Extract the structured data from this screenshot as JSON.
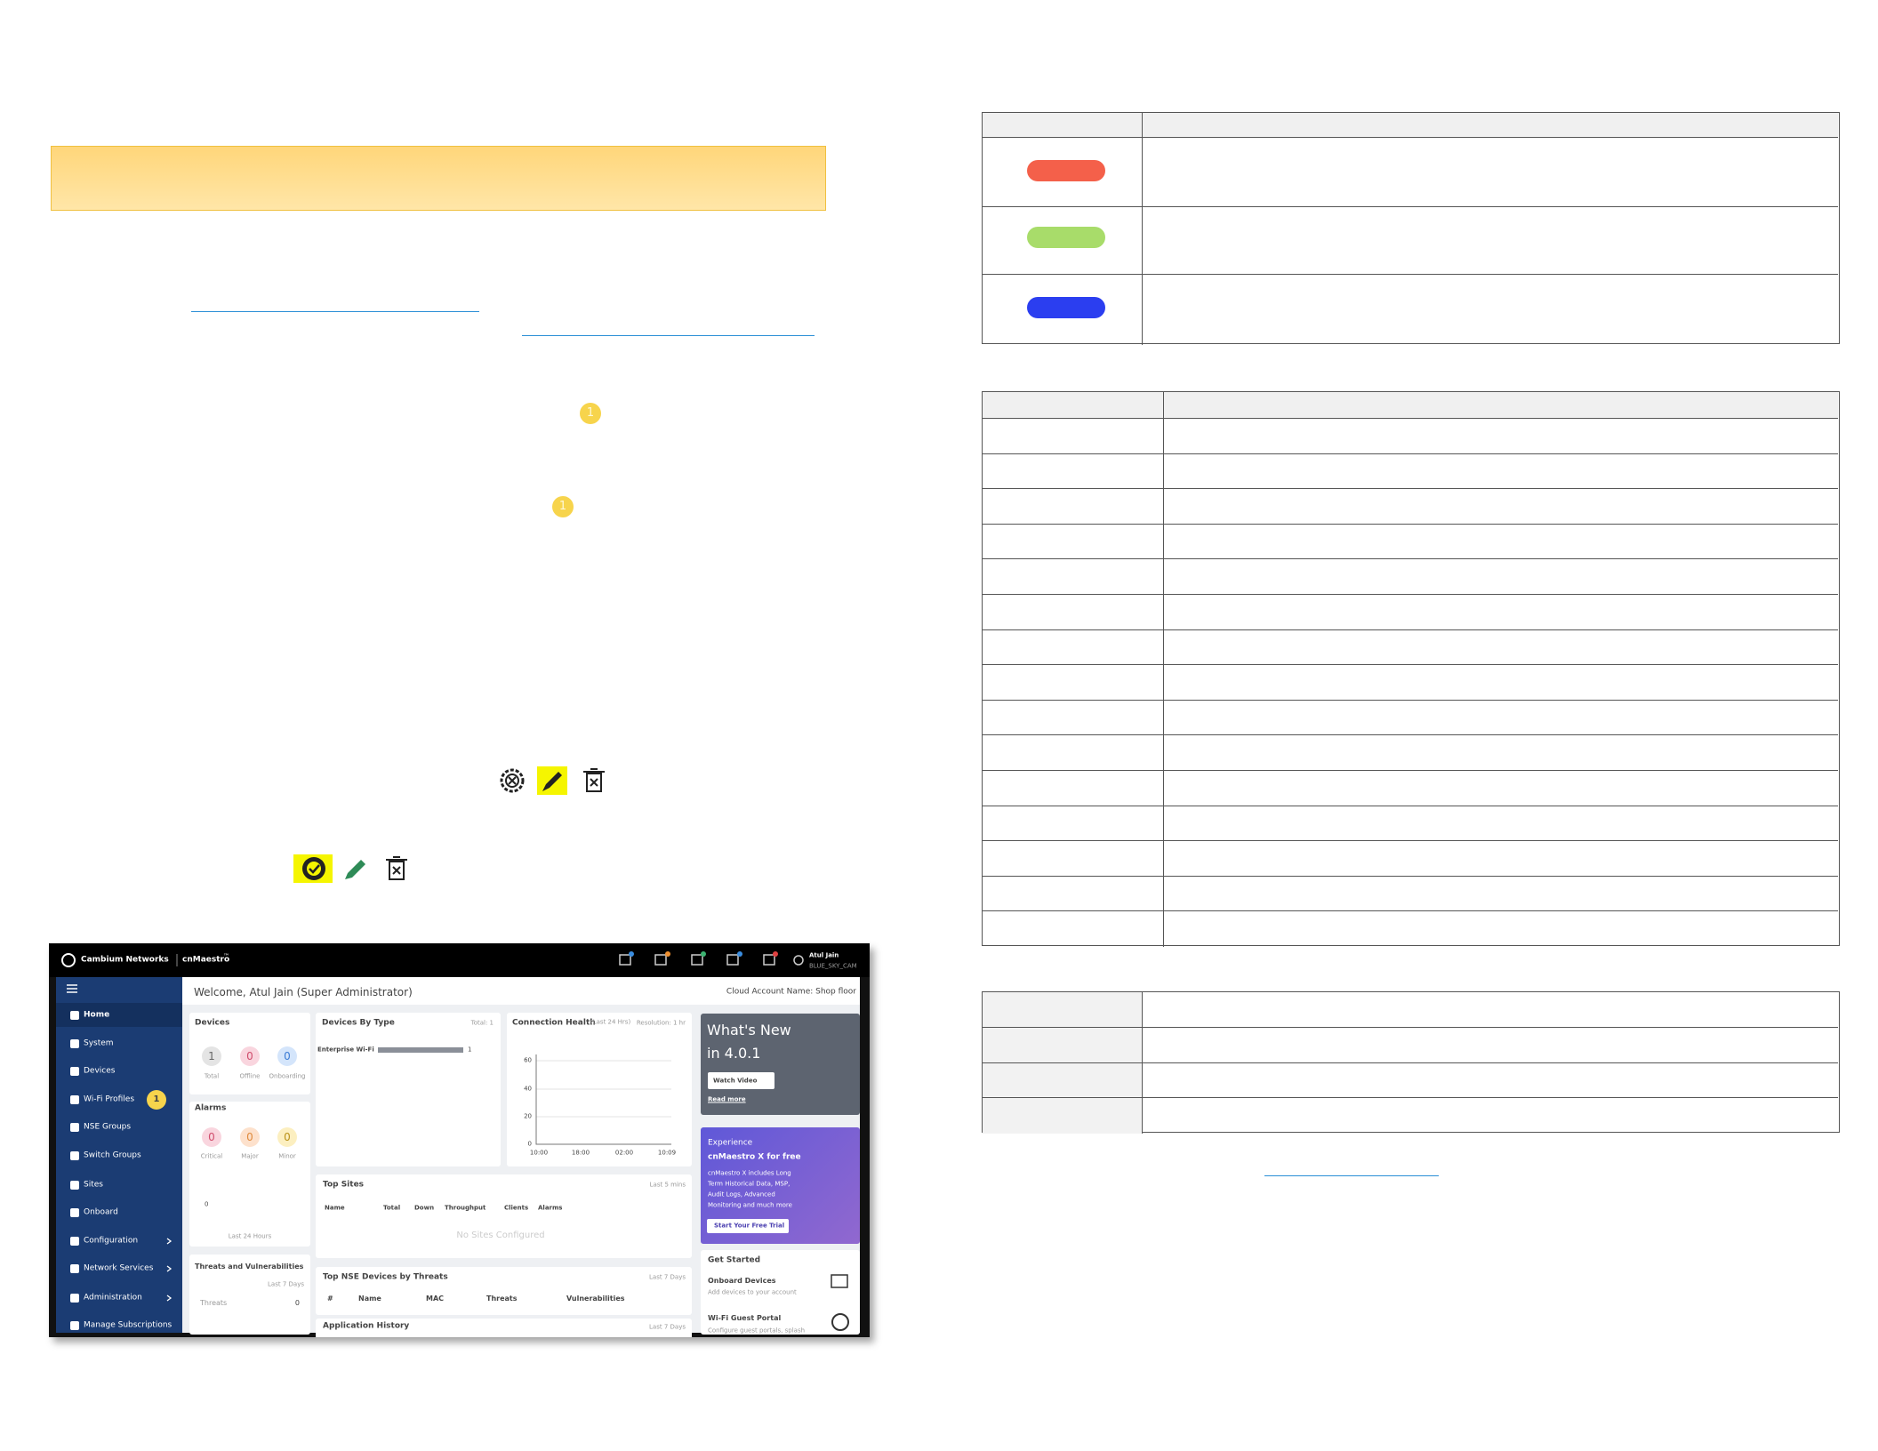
{
  "step_badges": [
    "1",
    "1"
  ],
  "app_screenshot": {
    "brand": "Cambium Networks",
    "product": "cnMaestro",
    "trademark": "™",
    "user_name": "Atul Jain",
    "account_id": "BLUE_SKY_CAM",
    "menu": [
      "Home",
      "System",
      "Devices",
      "Wi-Fi Profiles",
      "NSE Groups",
      "Switch Groups",
      "Sites",
      "Onboard",
      "Configuration",
      "Network Services",
      "Administration",
      "Manage Subscriptions"
    ],
    "menu_badge": "1",
    "welcome": "Welcome, Atul Jain (Super Administrator)",
    "cloud_account": "Cloud Account Name: Shop floor",
    "devices": {
      "title": "Devices",
      "counts": [
        1,
        0,
        0
      ],
      "labels": [
        "Total",
        "Offline",
        "Onboarding"
      ]
    },
    "alarms": {
      "title": "Alarms",
      "counts": [
        0,
        0,
        0
      ],
      "labels": [
        "Critical",
        "Major",
        "Minor"
      ],
      "axis_label": 0,
      "period": "Last 24 Hours"
    },
    "threats": {
      "title": "Threats and Vulnerabilities",
      "period": "Last 7 Days",
      "label": "Threats",
      "count": 0
    },
    "devices_by_type": {
      "title": "Devices By Type",
      "total": "Total: 1",
      "type": "Enterprise Wi-Fi",
      "count": 1
    },
    "connection_health": {
      "title": "Connection Health",
      "period": "(Last 24 Hrs)",
      "resolution": "Resolution: 1 hr",
      "yticks": [
        60,
        40,
        20,
        0
      ],
      "xticks": [
        "10:00",
        "18:00",
        "02:00",
        "10:09"
      ]
    },
    "top_sites": {
      "title": "Top Sites",
      "period": "Last 5 mins",
      "columns": [
        "Name",
        "Total",
        "Down",
        "Throughput",
        "Clients",
        "Alarms"
      ],
      "empty": "No Sites Configured"
    },
    "top_nse": {
      "title": "Top NSE Devices by Threats",
      "period": "Last 7 Days",
      "columns": [
        "#",
        "Name",
        "MAC",
        "Threats",
        "Vulnerabilities"
      ]
    },
    "app_history": {
      "title": "Application History",
      "period": "Last 7 Days"
    },
    "whats_new": {
      "title": "What's New",
      "version": "in 4.0.1",
      "button": "Watch Video",
      "link": "Read more"
    },
    "promo": {
      "heading": "Experience",
      "title": "cnMaestro X for free",
      "text": [
        "cnMaestro X includes Long",
        "Term Historical Data, MSP,",
        "Audit Logs, Advanced",
        "Monitoring and much more"
      ],
      "button": "Start Your Free Trial"
    },
    "get_started": {
      "title": "Get Started",
      "items": [
        {
          "title": "Onboard Devices",
          "text": "Add devices to your account"
        },
        {
          "title": "Wi-Fi Guest Portal",
          "text": "Configure guest portals, splash"
        }
      ]
    }
  }
}
